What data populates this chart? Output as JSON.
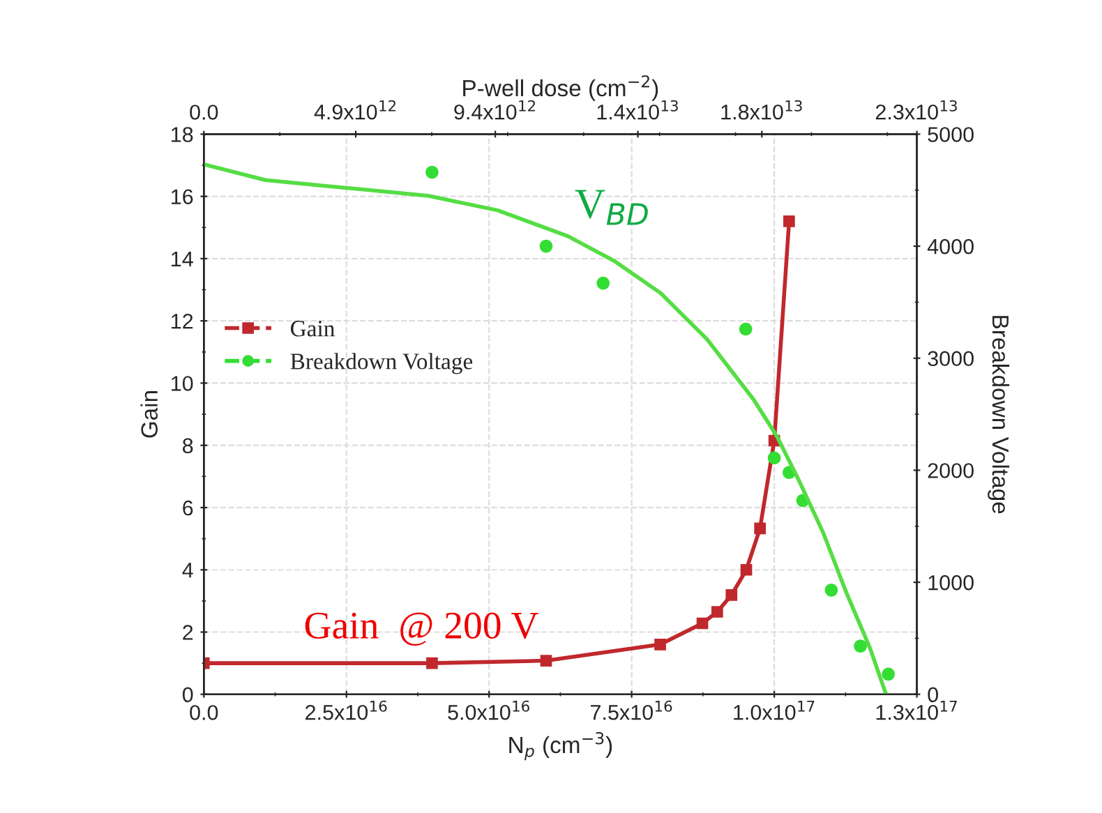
{
  "chart_data": {
    "type": "line",
    "xlabel": "N$_{p}$ (cm$^{−3}$)",
    "ylabel": "Gain",
    "y2label": "Breakdown Voltage",
    "x2label": "P-well dose (cm$^{−2}$)",
    "xlim": [
      0,
      1.25e+17
    ],
    "xticks": [
      {
        "value": 0,
        "label": "0.0"
      },
      {
        "value": 2.5e+16,
        "label": "2.5x10$^{16}$"
      },
      {
        "value": 5e+16,
        "label": "5.0x10$^{16}$"
      },
      {
        "value": 7.5e+16,
        "label": "7.5x10$^{16}$"
      },
      {
        "value": 1e+17,
        "label": "1.0x10$^{17}$"
      },
      {
        "value": 1.25e+17,
        "label": "1.3x10$^{17}$"
      }
    ],
    "x2lim": [
      0,
      23000000000000.0
    ],
    "x2ticks": [
      {
        "value": 0,
        "label": "0.0"
      },
      {
        "value": 4900000000000.0,
        "label": "4.9x10$^{12}$"
      },
      {
        "value": 9400000000000.0,
        "label": "9.4x10$^{12}$"
      },
      {
        "value": 14000000000000.0,
        "label": "1.4x10$^{13}$"
      },
      {
        "value": 18000000000000.0,
        "label": "1.8x10$^{13}$"
      },
      {
        "value": 23000000000000.0,
        "label": "2.3x10$^{13}$"
      }
    ],
    "ylim": [
      0,
      18
    ],
    "yticks": [
      0,
      2,
      4,
      6,
      8,
      10,
      12,
      14,
      16,
      18
    ],
    "y2lim": [
      0,
      5000
    ],
    "y2ticks": [
      0,
      1000,
      2000,
      3000,
      4000,
      5000
    ],
    "grid": true,
    "legend": "left",
    "series": [
      {
        "name": "Gain",
        "marker": "square",
        "color": "#c0282d",
        "x": [
          0,
          4e+16,
          6e+16,
          8e+16,
          8.74e+16,
          9e+16,
          9.25e+16,
          9.51e+16,
          9.75e+16,
          1e+17,
          1.026e+17
        ],
        "values": [
          1.0,
          1.0,
          1.08,
          1.6,
          2.28,
          2.65,
          3.19,
          4.0,
          5.33,
          8.15,
          15.2
        ]
      },
      {
        "name": "Breakdown Voltage",
        "type": "scatter",
        "marker": "circle",
        "axis": "y2",
        "color": "#33dd33",
        "x": [
          4e+16,
          6e+16,
          7e+16,
          9.5e+16,
          1e+17,
          1.026e+17,
          1.05e+17,
          1.1e+17,
          1.151e+17,
          1.2e+17
        ],
        "values": [
          4660,
          4000,
          3670,
          3260,
          2110,
          1980,
          1730,
          930,
          430,
          180
        ]
      },
      {
        "marker": "none",
        "axis": "y2",
        "color": "#55dd44",
        "x": [
          0,
          1.08e+16,
          2.3e+16,
          3.93e+16,
          5.15e+16,
          6.38e+16,
          7.19e+16,
          8.01e+16,
          8.82e+16,
          9.64e+16,
          1.005e+17,
          1.045e+17,
          1.086e+17,
          1.127e+17,
          1.168e+17,
          1.196e+17
        ],
        "values": [
          4730,
          4590,
          4530,
          4450,
          4320,
          4090,
          3870,
          3580,
          3170,
          2630,
          2300,
          1890,
          1440,
          900,
          410,
          0
        ]
      }
    ],
    "annotations": [
      "V$_{BD}$",
      "Gain  @ 200 V"
    ]
  }
}
